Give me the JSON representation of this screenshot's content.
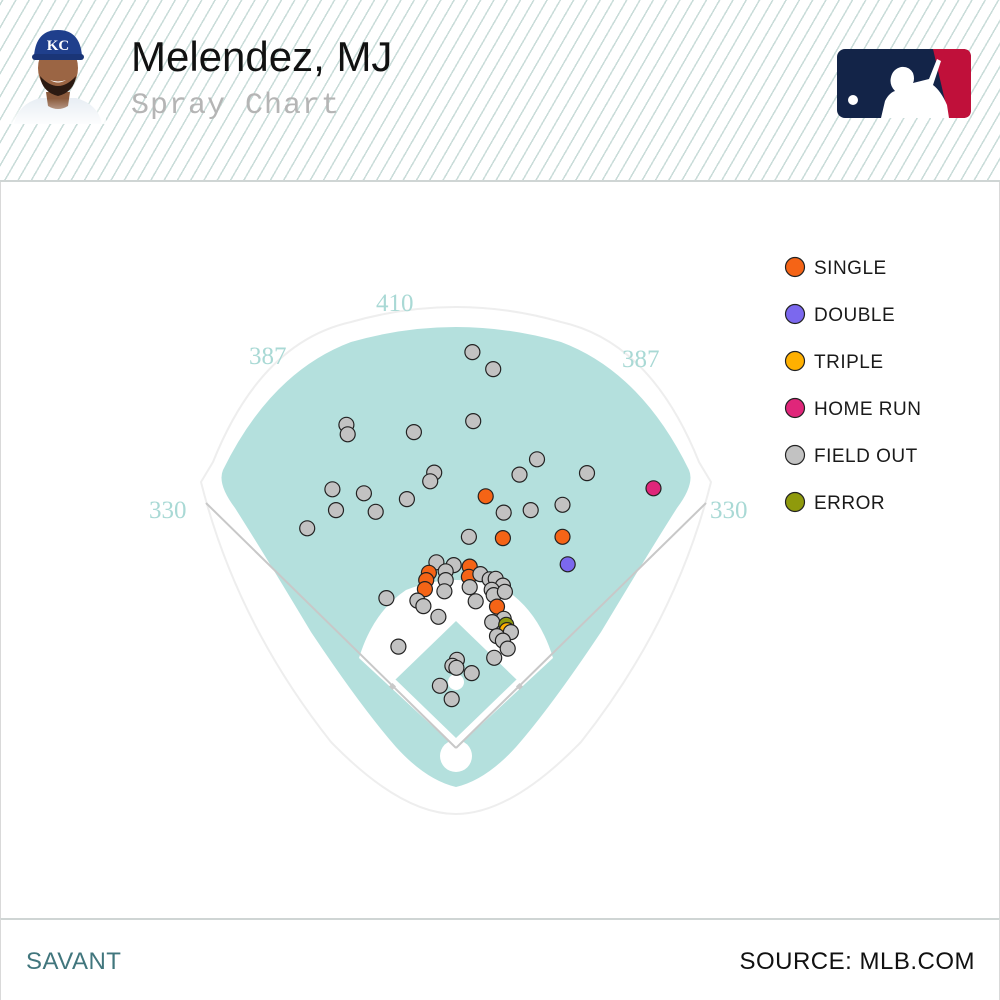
{
  "header": {
    "player_name": "Melendez, MJ",
    "subtitle": "Spray Chart",
    "team_cap_letters": "KC"
  },
  "footer": {
    "brand": "SAVANT",
    "source": "SOURCE: MLB.COM"
  },
  "colors": {
    "field": "#b4e0dd",
    "infield_dirt": "#ffffff",
    "warning_track": "#ffffff",
    "foul_line": "#c8c8c8",
    "header_stripe": "#c9dcd9",
    "logo_blue": "#132448",
    "logo_red": "#c0103a",
    "brand_text": "#41767d"
  },
  "chart_data": {
    "type": "scatter",
    "title": "Spray Chart",
    "fence_labels": [
      {
        "position": "left-field-line",
        "text": "330"
      },
      {
        "position": "left-center",
        "text": "387"
      },
      {
        "position": "center-field",
        "text": "410"
      },
      {
        "position": "right-center",
        "text": "387"
      },
      {
        "position": "right-field-line",
        "text": "330"
      }
    ],
    "legend": [
      {
        "key": "single",
        "label": "SINGLE",
        "color": "#f56416"
      },
      {
        "key": "double",
        "label": "DOUBLE",
        "color": "#7b68ee"
      },
      {
        "key": "triple",
        "label": "TRIPLE",
        "color": "#ffb000"
      },
      {
        "key": "home_run",
        "label": "HOME RUN",
        "color": "#e0267a"
      },
      {
        "key": "field_out",
        "label": "FIELD OUT",
        "color": "#c2c2c2"
      },
      {
        "key": "error",
        "label": "ERROR",
        "color": "#8f9a0c"
      }
    ],
    "legend_placement": "right",
    "coordinate_note": "hc_x/hc_y: Statcast hit coordinates, home plate near (125, 204)",
    "points": [
      {
        "hc_x": 132.0,
        "hc_y": 39.9,
        "result": "field_out"
      },
      {
        "hc_x": 140.3,
        "hc_y": 46.7,
        "result": "field_out"
      },
      {
        "hc_x": 132.3,
        "hc_y": 67.5,
        "result": "field_out"
      },
      {
        "hc_x": 81.6,
        "hc_y": 69.0,
        "result": "field_out"
      },
      {
        "hc_x": 82.1,
        "hc_y": 72.8,
        "result": "field_out"
      },
      {
        "hc_x": 108.6,
        "hc_y": 71.9,
        "result": "field_out"
      },
      {
        "hc_x": 157.8,
        "hc_y": 82.8,
        "result": "field_out"
      },
      {
        "hc_x": 116.7,
        "hc_y": 88.1,
        "result": "field_out"
      },
      {
        "hc_x": 115.1,
        "hc_y": 91.6,
        "result": "field_out"
      },
      {
        "hc_x": 150.8,
        "hc_y": 88.9,
        "result": "field_out"
      },
      {
        "hc_x": 177.8,
        "hc_y": 88.3,
        "result": "field_out"
      },
      {
        "hc_x": 76.0,
        "hc_y": 94.8,
        "result": "field_out"
      },
      {
        "hc_x": 88.6,
        "hc_y": 96.4,
        "result": "field_out"
      },
      {
        "hc_x": 105.8,
        "hc_y": 98.7,
        "result": "field_out"
      },
      {
        "hc_x": 137.3,
        "hc_y": 97.6,
        "result": "single"
      },
      {
        "hc_x": 77.4,
        "hc_y": 103.1,
        "result": "field_out"
      },
      {
        "hc_x": 93.3,
        "hc_y": 103.8,
        "result": "field_out"
      },
      {
        "hc_x": 155.3,
        "hc_y": 103.1,
        "result": "field_out"
      },
      {
        "hc_x": 168.0,
        "hc_y": 101.0,
        "result": "field_out"
      },
      {
        "hc_x": 144.5,
        "hc_y": 104.1,
        "result": "field_out"
      },
      {
        "hc_x": 65.9,
        "hc_y": 110.4,
        "result": "field_out"
      },
      {
        "hc_x": 130.6,
        "hc_y": 113.8,
        "result": "field_out"
      },
      {
        "hc_x": 144.2,
        "hc_y": 114.3,
        "result": "single"
      },
      {
        "hc_x": 168.0,
        "hc_y": 113.8,
        "result": "single"
      },
      {
        "hc_x": 204.4,
        "hc_y": 94.4,
        "result": "home_run"
      },
      {
        "hc_x": 170.1,
        "hc_y": 124.8,
        "result": "double"
      },
      {
        "hc_x": 117.6,
        "hc_y": 124.0,
        "result": "field_out"
      },
      {
        "hc_x": 124.5,
        "hc_y": 125.1,
        "result": "field_out"
      },
      {
        "hc_x": 130.9,
        "hc_y": 125.7,
        "result": "single"
      },
      {
        "hc_x": 114.6,
        "hc_y": 128.2,
        "result": "single"
      },
      {
        "hc_x": 130.6,
        "hc_y": 129.8,
        "result": "single"
      },
      {
        "hc_x": 135.2,
        "hc_y": 128.7,
        "result": "field_out"
      },
      {
        "hc_x": 121.3,
        "hc_y": 127.6,
        "result": "field_out"
      },
      {
        "hc_x": 138.9,
        "hc_y": 130.8,
        "result": "field_out"
      },
      {
        "hc_x": 141.3,
        "hc_y": 130.6,
        "result": "field_out"
      },
      {
        "hc_x": 144.2,
        "hc_y": 133.3,
        "result": "field_out"
      },
      {
        "hc_x": 113.5,
        "hc_y": 131.1,
        "result": "single"
      },
      {
        "hc_x": 121.3,
        "hc_y": 131.1,
        "result": "field_out"
      },
      {
        "hc_x": 130.9,
        "hc_y": 133.9,
        "result": "field_out"
      },
      {
        "hc_x": 139.7,
        "hc_y": 135.0,
        "result": "field_out"
      },
      {
        "hc_x": 113.0,
        "hc_y": 134.7,
        "result": "single"
      },
      {
        "hc_x": 120.8,
        "hc_y": 135.6,
        "result": "field_out"
      },
      {
        "hc_x": 140.5,
        "hc_y": 137.1,
        "result": "field_out"
      },
      {
        "hc_x": 145.0,
        "hc_y": 135.8,
        "result": "field_out"
      },
      {
        "hc_x": 97.6,
        "hc_y": 138.3,
        "result": "field_out"
      },
      {
        "hc_x": 110.0,
        "hc_y": 139.3,
        "result": "field_out"
      },
      {
        "hc_x": 133.3,
        "hc_y": 139.6,
        "result": "field_out"
      },
      {
        "hc_x": 112.4,
        "hc_y": 141.5,
        "result": "field_out"
      },
      {
        "hc_x": 141.8,
        "hc_y": 141.7,
        "result": "single"
      },
      {
        "hc_x": 118.4,
        "hc_y": 145.8,
        "result": "field_out"
      },
      {
        "hc_x": 144.5,
        "hc_y": 146.6,
        "result": "field_out"
      },
      {
        "hc_x": 139.9,
        "hc_y": 147.9,
        "result": "field_out"
      },
      {
        "hc_x": 145.5,
        "hc_y": 149.0,
        "result": "error"
      },
      {
        "hc_x": 145.8,
        "hc_y": 151.1,
        "result": "triple"
      },
      {
        "hc_x": 147.4,
        "hc_y": 151.9,
        "result": "field_out"
      },
      {
        "hc_x": 141.8,
        "hc_y": 153.5,
        "result": "field_out"
      },
      {
        "hc_x": 144.2,
        "hc_y": 155.3,
        "result": "field_out"
      },
      {
        "hc_x": 146.1,
        "hc_y": 158.5,
        "result": "field_out"
      },
      {
        "hc_x": 102.4,
        "hc_y": 157.7,
        "result": "field_out"
      },
      {
        "hc_x": 140.7,
        "hc_y": 162.2,
        "result": "field_out"
      },
      {
        "hc_x": 125.8,
        "hc_y": 163.0,
        "result": "field_out"
      },
      {
        "hc_x": 124.0,
        "hc_y": 165.4,
        "result": "field_out"
      },
      {
        "hc_x": 125.6,
        "hc_y": 166.2,
        "result": "field_out"
      },
      {
        "hc_x": 131.7,
        "hc_y": 168.3,
        "result": "field_out"
      },
      {
        "hc_x": 119.0,
        "hc_y": 173.4,
        "result": "field_out"
      },
      {
        "hc_x": 123.7,
        "hc_y": 178.7,
        "result": "field_out"
      }
    ]
  }
}
